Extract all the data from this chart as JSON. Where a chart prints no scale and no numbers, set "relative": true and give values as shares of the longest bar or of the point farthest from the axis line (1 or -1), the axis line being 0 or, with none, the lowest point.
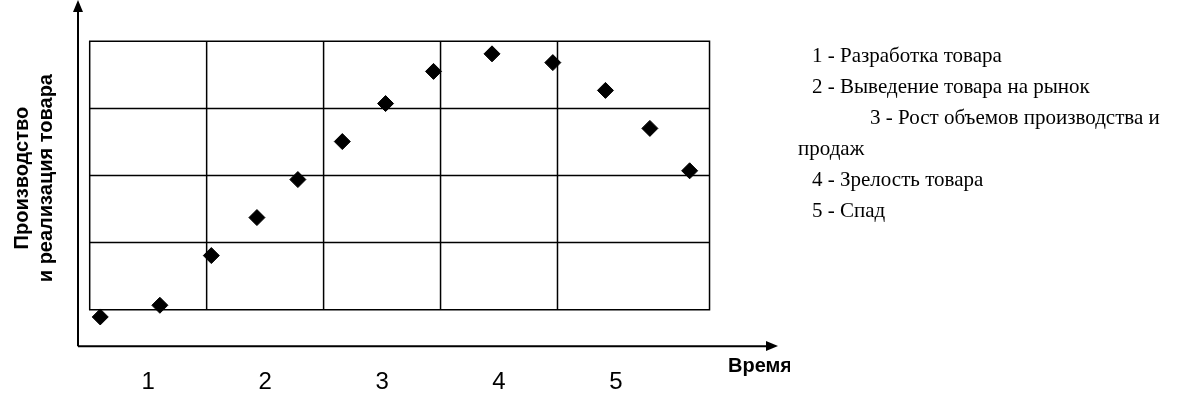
{
  "chart_data": {
    "type": "scatter",
    "relative": true,
    "xlabel": "Время",
    "ylabel": "Производство и реализация товара",
    "x": [
      0.59,
      1.1,
      1.54,
      1.93,
      2.28,
      2.66,
      3.03,
      3.44,
      3.94,
      4.46,
      4.91,
      5.29,
      5.63
    ],
    "values": [
      0.1,
      0.14,
      0.31,
      0.44,
      0.57,
      0.7,
      0.83,
      0.94,
      1.0,
      0.97,
      0.875,
      0.745,
      0.6
    ],
    "color": "#000000",
    "marker": "diamond",
    "xlim": [
      0.4,
      6.3
    ],
    "xticks": [
      1,
      2,
      3,
      4,
      5
    ],
    "grid": true,
    "legend": false,
    "annotations": [
      "1   - Разработка товара",
      "2   - Выведение товара на рынок",
      "3   - Рост объемов производства и продаж",
      "4   - Зрелость товара",
      "5   - Спад"
    ]
  }
}
